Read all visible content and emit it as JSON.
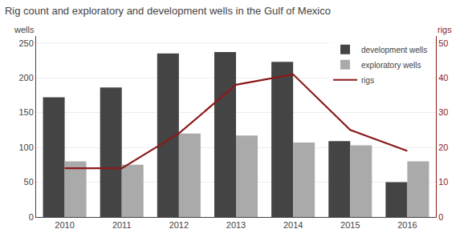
{
  "chart_data": {
    "type": "bar",
    "title": "Rig count and exploratory and development wells in the Gulf of Mexico",
    "ylabel": "wells",
    "y2label": "rigs",
    "categories": [
      "2010",
      "2011",
      "2012",
      "2013",
      "2014",
      "2015",
      "2016"
    ],
    "series": [
      {
        "name": "development wells",
        "type": "bar",
        "color": "#444444",
        "values": [
          172,
          186,
          235,
          237,
          223,
          109,
          50
        ]
      },
      {
        "name": "exploratory wells",
        "type": "bar",
        "color": "#aaaaaa",
        "values": [
          80,
          75,
          120,
          117,
          107,
          103,
          80
        ]
      },
      {
        "name": "rigs",
        "type": "line",
        "axis": "y2",
        "color": "#8b1a1a",
        "values": [
          14,
          14,
          24,
          38,
          41,
          25,
          19
        ]
      }
    ],
    "ylim": [
      0,
      260
    ],
    "yticks": [
      0,
      50,
      100,
      150,
      200,
      250
    ],
    "y2lim": [
      0,
      52
    ],
    "y2ticks": [
      0,
      10,
      20,
      30,
      40,
      50
    ],
    "grid": true,
    "legend": "upper right"
  }
}
